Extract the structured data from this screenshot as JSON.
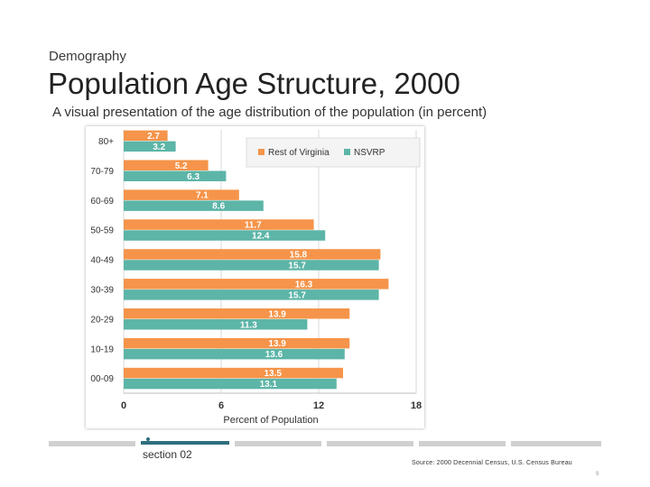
{
  "slide": {
    "category": "Demography",
    "title": "Population Age Structure, 2000",
    "subtitle": "A visual presentation of the age distribution of the population (in percent)",
    "section": "section 02",
    "source": "Source: 2000 Decennial Census, U.S. Census Bureau",
    "page": "9"
  },
  "colors": {
    "rest_of_virginia": "#f5944a",
    "nsvrp": "#5cb5a7",
    "grid": "#d9d9d9",
    "nav_active": "#2e6f7f",
    "nav_inactive": "#d0d0d0"
  },
  "chart_data": {
    "type": "bar",
    "orientation": "horizontal",
    "categories": [
      "80+",
      "70-79",
      "60-69",
      "50-59",
      "40-49",
      "30-39",
      "20-29",
      "10-19",
      "00-09"
    ],
    "series": [
      {
        "name": "Rest of Virginia",
        "values": [
          2.7,
          5.2,
          7.1,
          11.7,
          15.8,
          16.3,
          13.9,
          13.9,
          13.5
        ]
      },
      {
        "name": "NSVRP",
        "values": [
          3.2,
          6.3,
          8.6,
          12.4,
          15.7,
          15.7,
          11.3,
          13.6,
          13.1
        ]
      }
    ],
    "value_labels": [
      [
        "2.7",
        "5.2",
        "7.1",
        "11.7",
        "15.8",
        "16.3",
        "13.9",
        "13.9",
        "13.5"
      ],
      [
        "3.2",
        "6.3",
        "8.6",
        "12.4",
        "15.7",
        "15.7",
        "11.3",
        "13.6",
        "13.1"
      ]
    ],
    "xlabel": "Percent of Population",
    "ylabel": "",
    "xlim": [
      0,
      18
    ],
    "xticks": [
      "0",
      "6",
      "12",
      "18"
    ],
    "legend": [
      "Rest of Virginia",
      "NSVRP"
    ],
    "legend_position": "top-right",
    "grid": true
  }
}
